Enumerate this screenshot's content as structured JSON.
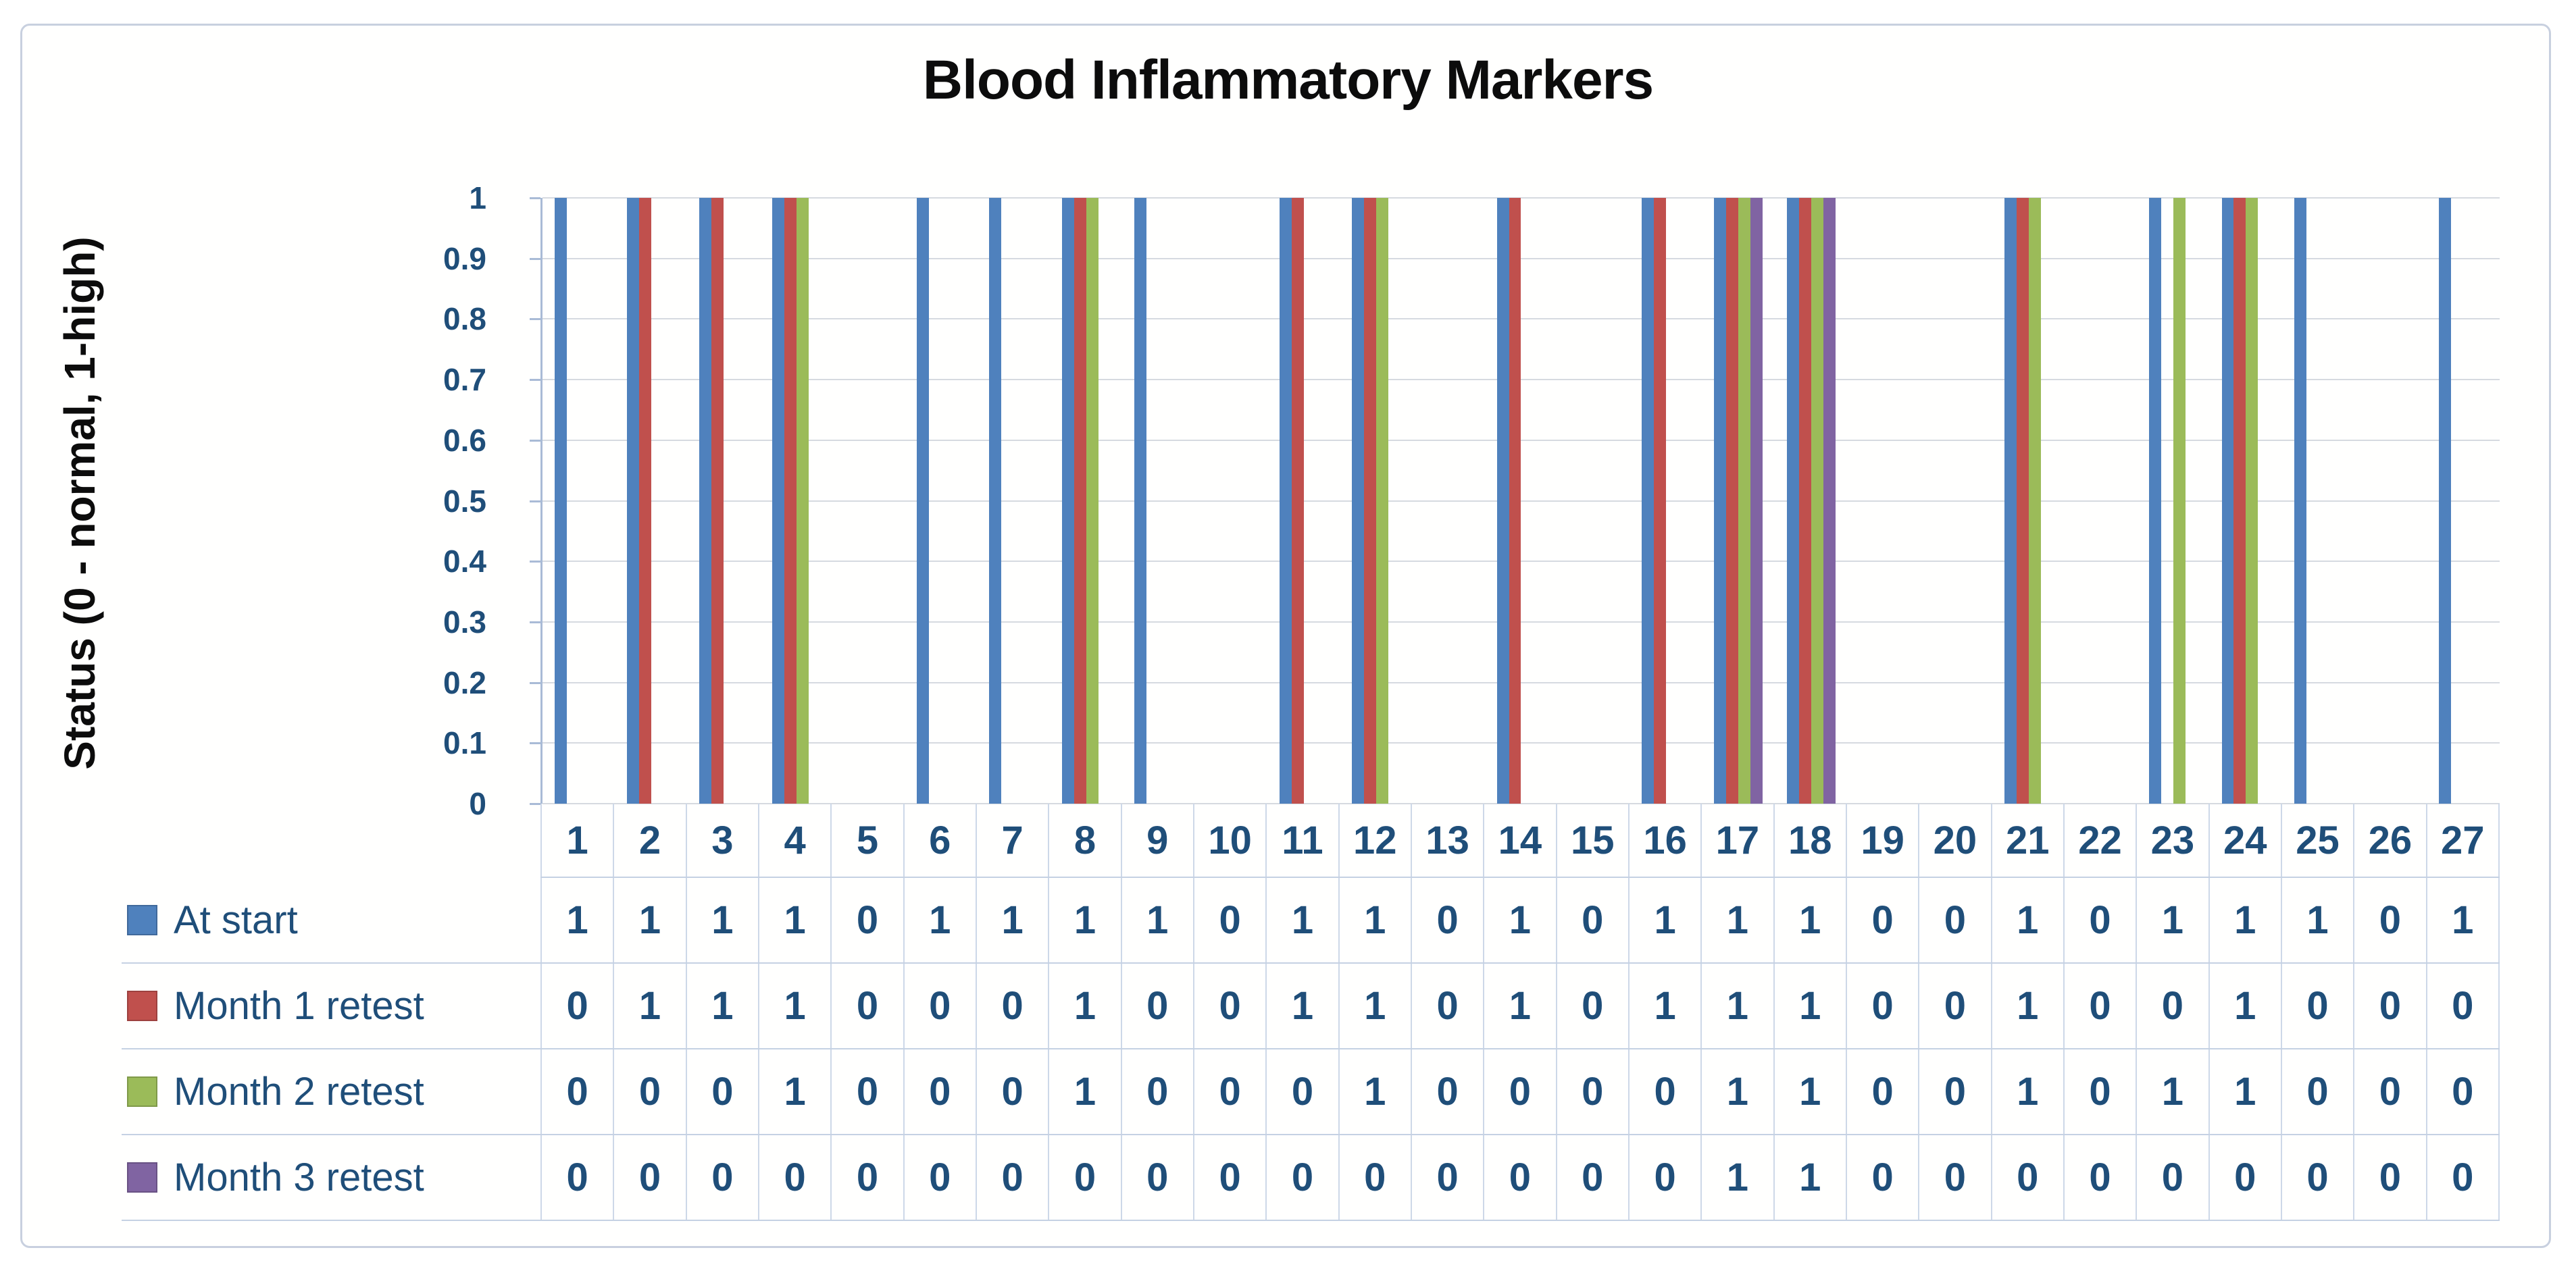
{
  "chart_data": {
    "type": "bar",
    "title": "Blood Inflammatory Markers",
    "xlabel": "",
    "ylabel": "Status (0 - normal, 1-high)",
    "ylim": [
      0,
      1
    ],
    "y_tick_labels": [
      "1",
      "0.9",
      "0.8",
      "0.7",
      "0.6",
      "0.5",
      "0.4",
      "0.3",
      "0.2",
      "0.1",
      "0"
    ],
    "grid": "horizontal-only",
    "legend_position": "table-left-of-rows",
    "text_color": "#1F4E79",
    "gridline_color": "#D6DAE0",
    "categories": [
      "1",
      "2",
      "3",
      "4",
      "5",
      "6",
      "7",
      "8",
      "9",
      "10",
      "11",
      "12",
      "13",
      "14",
      "15",
      "16",
      "17",
      "18",
      "19",
      "20",
      "21",
      "22",
      "23",
      "24",
      "25",
      "26",
      "27"
    ],
    "series": [
      {
        "name": "At start",
        "color": "#4F81BD",
        "values": [
          1,
          1,
          1,
          1,
          0,
          1,
          1,
          1,
          1,
          0,
          1,
          1,
          0,
          1,
          0,
          1,
          1,
          1,
          0,
          0,
          1,
          0,
          1,
          1,
          1,
          0,
          1
        ]
      },
      {
        "name": "Month 1 retest",
        "color": "#C0504D",
        "values": [
          0,
          1,
          1,
          1,
          0,
          0,
          0,
          1,
          0,
          0,
          1,
          1,
          0,
          1,
          0,
          1,
          1,
          1,
          0,
          0,
          1,
          0,
          0,
          1,
          0,
          0,
          0
        ]
      },
      {
        "name": "Month 2 retest",
        "color": "#9BBB59",
        "values": [
          0,
          0,
          0,
          1,
          0,
          0,
          0,
          1,
          0,
          0,
          0,
          1,
          0,
          0,
          0,
          0,
          1,
          1,
          0,
          0,
          1,
          0,
          1,
          1,
          0,
          0,
          0
        ]
      },
      {
        "name": "Month 3 retest",
        "color": "#8064A2",
        "values": [
          0,
          0,
          0,
          0,
          0,
          0,
          0,
          0,
          0,
          0,
          0,
          0,
          0,
          0,
          0,
          0,
          1,
          1,
          0,
          0,
          0,
          0,
          0,
          0,
          0,
          0,
          0
        ]
      }
    ]
  }
}
